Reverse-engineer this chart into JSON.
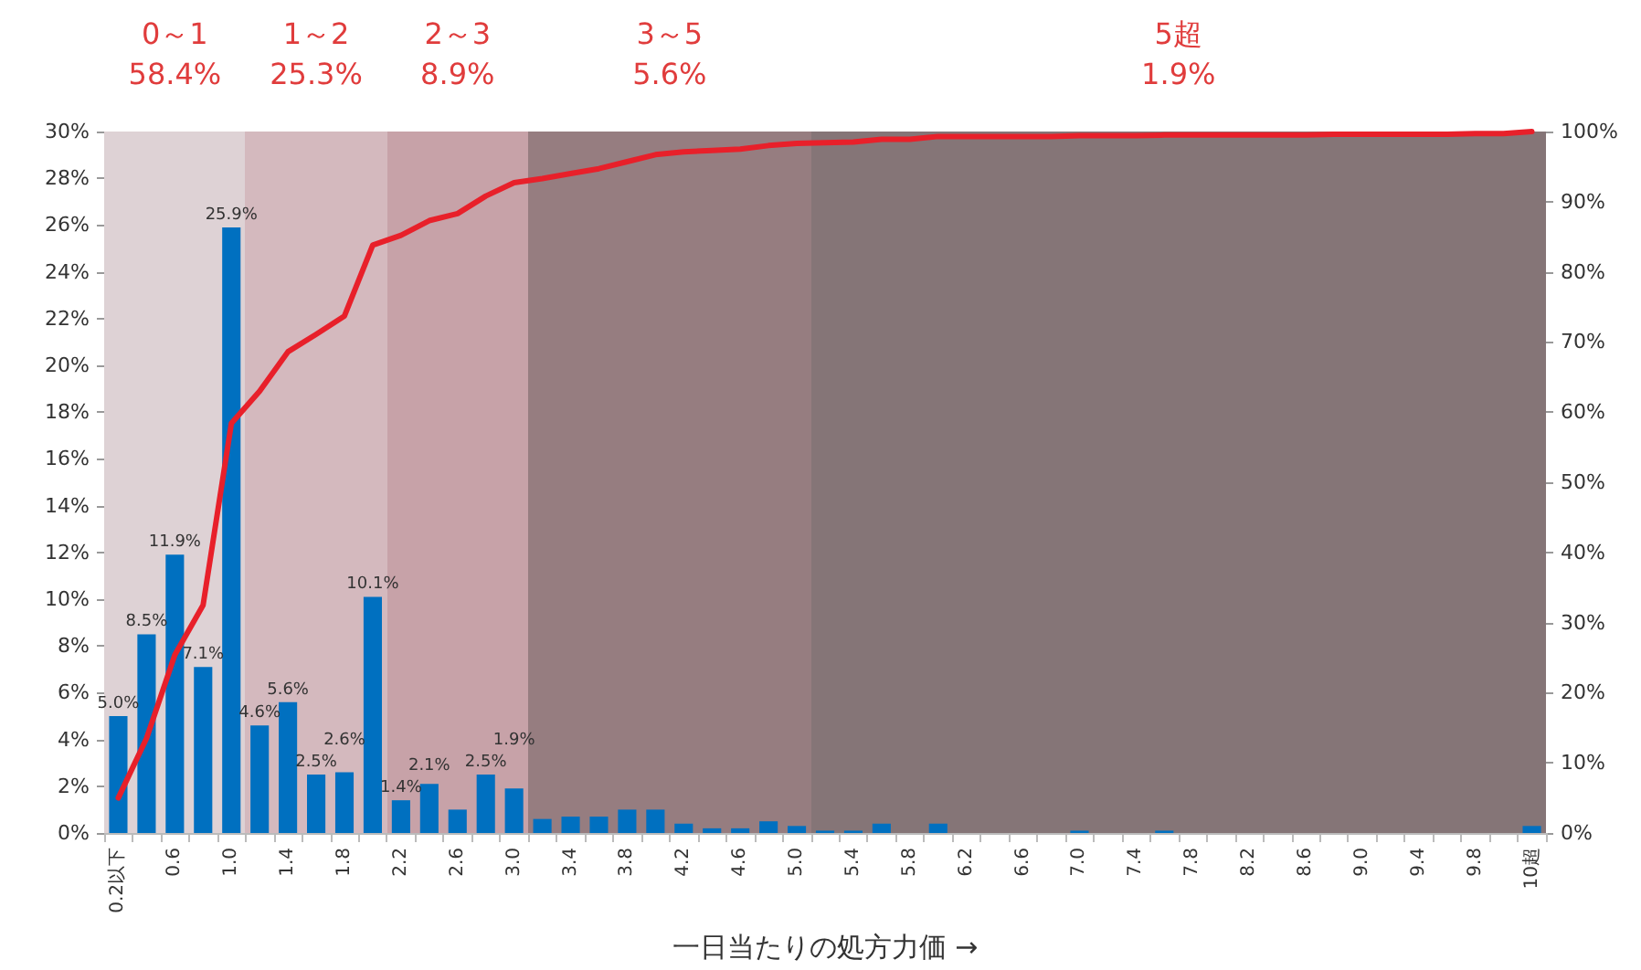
{
  "chart_data": {
    "type": "bar",
    "xlabel": "一日当たりの処方力価 →",
    "categories": [
      "0.2以下",
      null,
      "0.6",
      null,
      "1.0",
      null,
      "1.4",
      null,
      "1.8",
      null,
      "2.2",
      null,
      "2.6",
      null,
      "3.0",
      null,
      "3.4",
      null,
      "3.8",
      null,
      "4.2",
      null,
      "4.6",
      null,
      "5.0",
      null,
      "5.4",
      null,
      "5.8",
      null,
      "6.2",
      null,
      "6.6",
      null,
      "7.0",
      null,
      "7.4",
      null,
      "7.8",
      null,
      "8.2",
      null,
      "8.6",
      null,
      "9.0",
      null,
      "9.4",
      null,
      "9.8",
      null,
      "10超"
    ],
    "series": [
      {
        "color": "#0070c0",
        "values": [
          5.0,
          8.5,
          11.9,
          7.1,
          25.9,
          4.6,
          5.6,
          2.5,
          2.6,
          10.1,
          1.4,
          2.1,
          1.0,
          2.5,
          1.9,
          0.6,
          0.7,
          0.7,
          1.0,
          1.0,
          0.4,
          0.2,
          0.2,
          0.5,
          0.3,
          0.1,
          0.1,
          0.4,
          0,
          0.4,
          0,
          0,
          0,
          0,
          0.1,
          0,
          0,
          0.1,
          0,
          0,
          0,
          0,
          0,
          0,
          0,
          0,
          0,
          0,
          0,
          0,
          0.3
        ],
        "value_labels": [
          "5.0%",
          "8.5%",
          "11.9%",
          "7.1%",
          "25.9%",
          "4.6%",
          "5.6%",
          "2.5%",
          "2.6%",
          "10.1%",
          "1.4%",
          "2.1%",
          null,
          "2.5%",
          "1.9%",
          null,
          null,
          null,
          null,
          null,
          null,
          null,
          null,
          null,
          null,
          null,
          null,
          null,
          null,
          null,
          null,
          null,
          null,
          null,
          null,
          null,
          null,
          null,
          null,
          null,
          null,
          null,
          null,
          null,
          null,
          null,
          null,
          null,
          null,
          null,
          null
        ]
      },
      {
        "type": "line",
        "axis": "y2",
        "color": "#e8202a",
        "values": [
          5.0,
          13.5,
          25.4,
          32.5,
          58.4,
          63.0,
          68.6,
          71.1,
          73.7,
          83.8,
          85.2,
          87.3,
          88.3,
          90.8,
          92.7,
          93.3,
          94.0,
          94.7,
          95.7,
          96.7,
          97.1,
          97.3,
          97.5,
          98.0,
          98.3,
          98.4,
          98.5,
          98.9,
          98.9,
          99.3,
          99.3,
          99.3,
          99.3,
          99.3,
          99.4,
          99.4,
          99.4,
          99.5,
          99.5,
          99.5,
          99.5,
          99.5,
          99.5,
          99.6,
          99.6,
          99.6,
          99.6,
          99.6,
          99.7,
          99.7,
          100
        ]
      }
    ],
    "ylim": [
      0,
      30
    ],
    "yticks": [
      {
        "value": 0,
        "label": "0%"
      },
      {
        "value": 2,
        "label": "2%"
      },
      {
        "value": 4,
        "label": "4%"
      },
      {
        "value": 6,
        "label": "6%"
      },
      {
        "value": 8,
        "label": "8%"
      },
      {
        "value": 10,
        "label": "10%"
      },
      {
        "value": 12,
        "label": "12%"
      },
      {
        "value": 14,
        "label": "14%"
      },
      {
        "value": 16,
        "label": "16%"
      },
      {
        "value": 18,
        "label": "18%"
      },
      {
        "value": 20,
        "label": "20%"
      },
      {
        "value": 22,
        "label": "22%"
      },
      {
        "value": 24,
        "label": "24%"
      },
      {
        "value": 26,
        "label": "26%"
      },
      {
        "value": 28,
        "label": "28%"
      },
      {
        "value": 30,
        "label": "30%"
      }
    ],
    "y2lim": [
      0,
      100
    ],
    "y2ticks": [
      {
        "value": 0,
        "label": "0%"
      },
      {
        "value": 10,
        "label": "10%"
      },
      {
        "value": 20,
        "label": "20%"
      },
      {
        "value": 30,
        "label": "30%"
      },
      {
        "value": 40,
        "label": "40%"
      },
      {
        "value": 50,
        "label": "50%"
      },
      {
        "value": 60,
        "label": "60%"
      },
      {
        "value": 70,
        "label": "70%"
      },
      {
        "value": 80,
        "label": "80%"
      },
      {
        "value": 90,
        "label": "90%"
      },
      {
        "value": 100,
        "label": "100%"
      }
    ],
    "annotations": [
      "0～1\n58.4%",
      "1～2\n25.3%",
      "2～3\n8.9%",
      "3～5\n5.6%",
      "5超\n1.9%"
    ],
    "grid": false,
    "marker": "none",
    "line_style": "solid"
  }
}
